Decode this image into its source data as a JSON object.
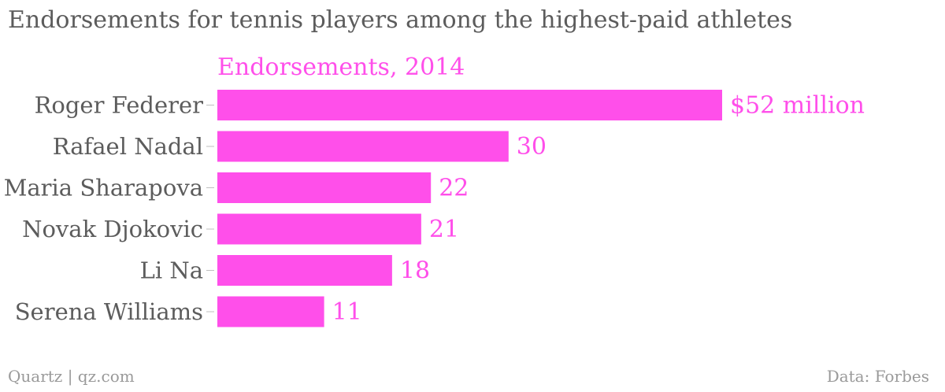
{
  "title": "Endorsements for tennis players among the highest-paid athletes",
  "footer": {
    "source_left": "Quartz | qz.com",
    "source_right": "Data: Forbes"
  },
  "colors": {
    "bar": "#ff4fea",
    "text": "#5c5c5c",
    "muted": "#9a9a9a"
  },
  "chart_data": {
    "type": "bar",
    "orientation": "horizontal",
    "categories": [
      "Roger Federer",
      "Rafael Nadal",
      "Maria Sharapova",
      "Novak Djokovic",
      "Li Na",
      "Serena Williams"
    ],
    "series": [
      {
        "name": "Endorsements, 2014",
        "values": [
          52,
          30,
          22,
          21,
          18,
          11
        ],
        "labels": [
          "$52 million",
          "30",
          "22",
          "21",
          "18",
          "11"
        ]
      }
    ],
    "xlim": [
      0,
      52
    ],
    "grid": false,
    "legend": "top-left"
  }
}
